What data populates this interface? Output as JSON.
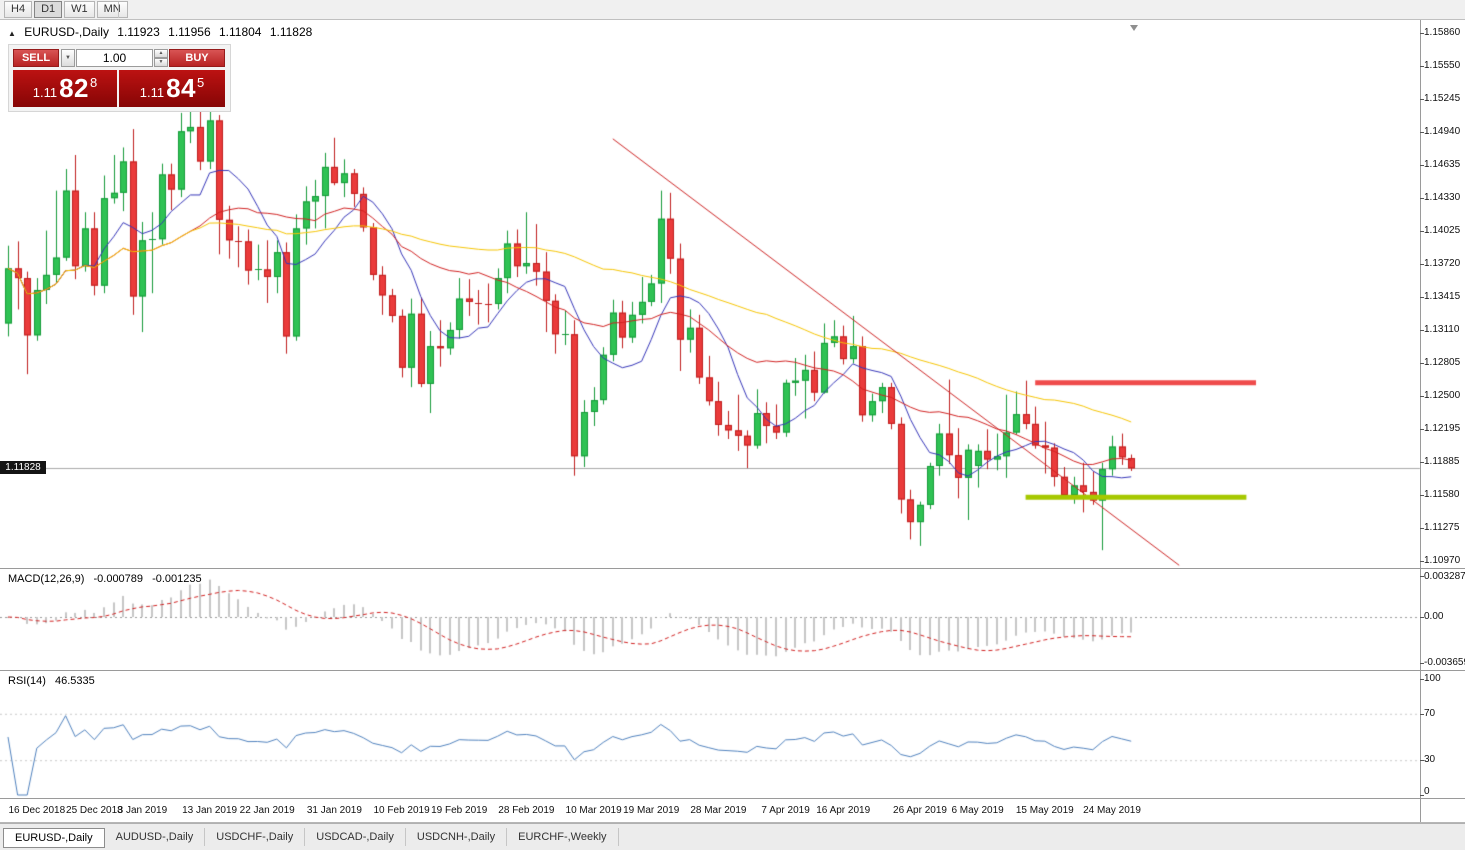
{
  "toolbar": {
    "timeframes": [
      {
        "label": "H4",
        "active": false
      },
      {
        "label": "D1",
        "active": true
      },
      {
        "label": "W1",
        "active": false
      },
      {
        "label": "MN",
        "active": false
      }
    ]
  },
  "icons": {
    "collapse": "▲",
    "dropdown_arrow": "▼",
    "spin_up": "▲",
    "spin_down": "▼"
  },
  "chart_header": {
    "symbol": "EURUSD-,Daily",
    "open": "1.11923",
    "high": "1.11956",
    "low": "1.11804",
    "close": "1.11828"
  },
  "trade_panel": {
    "sell_label": "SELL",
    "buy_label": "BUY",
    "volume": "1.00",
    "bid": {
      "prefix": "1.11",
      "big": "82",
      "sup": "8"
    },
    "ask": {
      "prefix": "1.11",
      "big": "84",
      "sup": "5"
    }
  },
  "price_scale": {
    "bid_label": "1.11828",
    "main": [
      "1.15860",
      "1.15550",
      "1.15245",
      "1.14940",
      "1.14635",
      "1.14330",
      "1.14025",
      "1.13720",
      "1.13415",
      "1.13110",
      "1.12805",
      "1.12500",
      "1.12195",
      "1.11885",
      "1.11580",
      "1.11275",
      "1.10970"
    ]
  },
  "macd_panel": {
    "label": "MACD(12,26,9)",
    "value1": "-0.000789",
    "value2": "-0.001235",
    "scale": [
      "0.003287",
      "0.00",
      "-0.003659"
    ]
  },
  "rsi_panel": {
    "label": "RSI(14)",
    "value": "46.5335",
    "scale": [
      "100",
      "70",
      "30",
      "0"
    ]
  },
  "date_axis": {
    "labels": [
      {
        "text": "16 Dec 2018",
        "index": 3
      },
      {
        "text": "25 Dec 2018",
        "index": 9
      },
      {
        "text": "3 Jan 2019",
        "index": 14
      },
      {
        "text": "13 Jan 2019",
        "index": 21
      },
      {
        "text": "22 Jan 2019",
        "index": 27
      },
      {
        "text": "31 Jan 2019",
        "index": 34
      },
      {
        "text": "10 Feb 2019",
        "index": 41
      },
      {
        "text": "19 Feb 2019",
        "index": 47
      },
      {
        "text": "28 Feb 2019",
        "index": 54
      },
      {
        "text": "10 Mar 2019",
        "index": 61
      },
      {
        "text": "19 Mar 2019",
        "index": 67
      },
      {
        "text": "28 Mar 2019",
        "index": 74
      },
      {
        "text": "7 Apr 2019",
        "index": 81
      },
      {
        "text": "16 Apr 2019",
        "index": 87
      },
      {
        "text": "26 Apr 2019",
        "index": 95
      },
      {
        "text": "6 May 2019",
        "index": 101
      },
      {
        "text": "15 May 2019",
        "index": 108
      },
      {
        "text": "24 May 2019",
        "index": 115
      }
    ]
  },
  "tabs": [
    {
      "label": "EURUSD-,Daily",
      "active": true
    },
    {
      "label": "AUDUSD-,Daily",
      "active": false
    },
    {
      "label": "USDCHF-,Daily",
      "active": false
    },
    {
      "label": "USDCAD-,Daily",
      "active": false
    },
    {
      "label": "USDCNH-,Daily",
      "active": false
    },
    {
      "label": "EURCHF-,Weekly",
      "active": false
    }
  ],
  "colors": {
    "candle_up": "#2fc254",
    "candle_up_border": "#149a38",
    "candle_down": "#ea3b3b",
    "candle_down_border": "#bf1d1d",
    "trendline": "#cc2222",
    "resistance": "#ef4b4b",
    "support": "#a6c800",
    "bid_line": "#a8a8a8",
    "macd_hist": "#c6c6c6",
    "macd_signal": "#d02020",
    "macd_zero": "#999999",
    "rsi_line": "#4f81bd",
    "rsi_levels": "#c8c8c8"
  },
  "chart_data": {
    "type": "candlestick",
    "symbol": "EURUSD",
    "timeframe": "Daily",
    "price_range_visible": [
      1.1091,
      1.1596
    ],
    "grid": false,
    "moving_averages": [
      {
        "period": 8,
        "color": "#3434b8"
      },
      {
        "period": 20,
        "color": "#d02020"
      },
      {
        "period": 50,
        "color": "#f5c400"
      }
    ],
    "indicators": {
      "macd": {
        "fast": 12,
        "slow": 26,
        "signal": 9,
        "current": -0.000789,
        "current_signal": -0.001235,
        "scale_max": 0.003287,
        "scale_min": -0.003659
      },
      "rsi": {
        "period": 14,
        "current": 46.5335,
        "levels": [
          70,
          30
        ]
      }
    },
    "objects": {
      "trendline": {
        "from_index": 63,
        "from_price": 1.1488,
        "to_index": 122,
        "to_price": 1.1093
      },
      "resistance_line": {
        "from_index": 107,
        "to_index": 130,
        "price": 1.1262
      },
      "support_line": {
        "from_index": 106,
        "to_index": 129,
        "price": 1.1156
      }
    },
    "candles": [
      [
        "2018.12.12",
        1.1317,
        1.1389,
        1.1305,
        1.1368
      ],
      [
        "2018.12.13",
        1.1368,
        1.1393,
        1.133,
        1.1359
      ],
      [
        "2018.12.14",
        1.1359,
        1.1365,
        1.127,
        1.1306
      ],
      [
        "2018.12.17",
        1.1306,
        1.1359,
        1.1301,
        1.1348
      ],
      [
        "2018.12.18",
        1.1348,
        1.1403,
        1.1335,
        1.1362
      ],
      [
        "2018.12.19",
        1.1362,
        1.144,
        1.1355,
        1.1378
      ],
      [
        "2018.12.20",
        1.1378,
        1.146,
        1.1375,
        1.144
      ],
      [
        "2018.12.21",
        1.144,
        1.1473,
        1.1358,
        1.137
      ],
      [
        "2018.12.24",
        1.137,
        1.142,
        1.1365,
        1.1405
      ],
      [
        "2018.12.26",
        1.1405,
        1.142,
        1.1343,
        1.1352
      ],
      [
        "2018.12.27",
        1.1352,
        1.1454,
        1.1345,
        1.1433
      ],
      [
        "2018.12.28",
        1.1433,
        1.1473,
        1.1428,
        1.1438
      ],
      [
        "2018.12.31",
        1.1438,
        1.148,
        1.1421,
        1.1467
      ],
      [
        "2019.01.02",
        1.1467,
        1.1497,
        1.1325,
        1.1342
      ],
      [
        "2019.01.03",
        1.1342,
        1.1411,
        1.1309,
        1.1394
      ],
      [
        "2019.01.04",
        1.1394,
        1.142,
        1.1345,
        1.1395
      ],
      [
        "2019.01.07",
        1.1395,
        1.1465,
        1.139,
        1.1455
      ],
      [
        "2019.01.08",
        1.1455,
        1.1465,
        1.1422,
        1.1441
      ],
      [
        "2019.01.09",
        1.1441,
        1.1512,
        1.1434,
        1.1495
      ],
      [
        "2019.01.10",
        1.1495,
        1.1525,
        1.1484,
        1.1499
      ],
      [
        "2019.01.11",
        1.1499,
        1.1522,
        1.1459,
        1.1467
      ],
      [
        "2019.01.14",
        1.1467,
        1.152,
        1.146,
        1.1505
      ],
      [
        "2019.01.15",
        1.1505,
        1.151,
        1.1381,
        1.1413
      ],
      [
        "2019.01.16",
        1.1413,
        1.1426,
        1.1377,
        1.1394
      ],
      [
        "2019.01.17",
        1.1394,
        1.1407,
        1.1369,
        1.1393
      ],
      [
        "2019.01.18",
        1.1393,
        1.1404,
        1.1353,
        1.1366
      ],
      [
        "2019.01.21",
        1.1366,
        1.139,
        1.1357,
        1.1367
      ],
      [
        "2019.01.22",
        1.1367,
        1.1394,
        1.1336,
        1.136
      ],
      [
        "2019.01.23",
        1.136,
        1.1394,
        1.1345,
        1.1383
      ],
      [
        "2019.01.24",
        1.1383,
        1.1392,
        1.1289,
        1.1305
      ],
      [
        "2019.01.25",
        1.1305,
        1.1418,
        1.1301,
        1.1405
      ],
      [
        "2019.01.28",
        1.1405,
        1.1444,
        1.139,
        1.143
      ],
      [
        "2019.01.29",
        1.143,
        1.145,
        1.1405,
        1.1435
      ],
      [
        "2019.01.30",
        1.1435,
        1.1475,
        1.1405,
        1.1462
      ],
      [
        "2019.01.31",
        1.1462,
        1.1489,
        1.1445,
        1.1447
      ],
      [
        "2019.02.01",
        1.1447,
        1.1469,
        1.1434,
        1.1456
      ],
      [
        "2019.02.04",
        1.1456,
        1.146,
        1.1425,
        1.1437
      ],
      [
        "2019.02.05",
        1.1437,
        1.1443,
        1.1402,
        1.1406
      ],
      [
        "2019.02.06",
        1.1406,
        1.141,
        1.1357,
        1.1362
      ],
      [
        "2019.02.07",
        1.1362,
        1.137,
        1.1325,
        1.1343
      ],
      [
        "2019.02.08",
        1.1343,
        1.1349,
        1.1318,
        1.1324
      ],
      [
        "2019.02.11",
        1.1324,
        1.133,
        1.1267,
        1.1276
      ],
      [
        "2019.02.12",
        1.1276,
        1.134,
        1.1258,
        1.1326
      ],
      [
        "2019.02.13",
        1.1326,
        1.1341,
        1.1258,
        1.1261
      ],
      [
        "2019.02.14",
        1.1261,
        1.131,
        1.1234,
        1.1296
      ],
      [
        "2019.02.15",
        1.1296,
        1.132,
        1.1277,
        1.1294
      ],
      [
        "2019.02.18",
        1.1294,
        1.1318,
        1.1288,
        1.1311
      ],
      [
        "2019.02.19",
        1.1311,
        1.1359,
        1.1303,
        1.134
      ],
      [
        "2019.02.20",
        1.134,
        1.1358,
        1.1324,
        1.1337
      ],
      [
        "2019.02.21",
        1.1337,
        1.1348,
        1.1316,
        1.1336
      ],
      [
        "2019.02.22",
        1.1336,
        1.1354,
        1.1318,
        1.1335
      ],
      [
        "2019.02.25",
        1.1335,
        1.1368,
        1.133,
        1.1359
      ],
      [
        "2019.02.26",
        1.1359,
        1.1403,
        1.1345,
        1.1391
      ],
      [
        "2019.02.27",
        1.1391,
        1.1404,
        1.136,
        1.137
      ],
      [
        "2019.02.28",
        1.137,
        1.142,
        1.1363,
        1.1373
      ],
      [
        "2019.03.01",
        1.1373,
        1.1409,
        1.1352,
        1.1365
      ],
      [
        "2019.03.04",
        1.1365,
        1.1383,
        1.1309,
        1.1338
      ],
      [
        "2019.03.05",
        1.1338,
        1.1344,
        1.1289,
        1.1307
      ],
      [
        "2019.03.06",
        1.1307,
        1.1329,
        1.1297,
        1.1307
      ],
      [
        "2019.03.07",
        1.1307,
        1.132,
        1.1176,
        1.1194
      ],
      [
        "2019.03.08",
        1.1194,
        1.1246,
        1.1184,
        1.1235
      ],
      [
        "2019.03.11",
        1.1235,
        1.1258,
        1.1222,
        1.1246
      ],
      [
        "2019.03.12",
        1.1246,
        1.1295,
        1.1242,
        1.1288
      ],
      [
        "2019.03.13",
        1.1288,
        1.1339,
        1.1282,
        1.1327
      ],
      [
        "2019.03.14",
        1.1327,
        1.1338,
        1.1294,
        1.1304
      ],
      [
        "2019.03.15",
        1.1304,
        1.1337,
        1.1299,
        1.1325
      ],
      [
        "2019.03.18",
        1.1325,
        1.136,
        1.1317,
        1.1337
      ],
      [
        "2019.03.19",
        1.1337,
        1.1362,
        1.1333,
        1.1354
      ],
      [
        "2019.03.20",
        1.1354,
        1.144,
        1.1336,
        1.1414
      ],
      [
        "2019.03.21",
        1.1414,
        1.1438,
        1.1363,
        1.1377
      ],
      [
        "2019.03.22",
        1.1377,
        1.1391,
        1.1273,
        1.1302
      ],
      [
        "2019.03.25",
        1.1302,
        1.133,
        1.129,
        1.1313
      ],
      [
        "2019.03.26",
        1.1313,
        1.1325,
        1.1261,
        1.1267
      ],
      [
        "2019.03.27",
        1.1267,
        1.1287,
        1.1241,
        1.1245
      ],
      [
        "2019.03.28",
        1.1245,
        1.1263,
        1.1213,
        1.1223
      ],
      [
        "2019.03.29",
        1.1223,
        1.1236,
        1.121,
        1.1218
      ],
      [
        "2019.04.01",
        1.1218,
        1.1251,
        1.1199,
        1.1213
      ],
      [
        "2019.04.02",
        1.1213,
        1.1218,
        1.1183,
        1.1204
      ],
      [
        "2019.04.03",
        1.1204,
        1.1256,
        1.1201,
        1.1234
      ],
      [
        "2019.04.04",
        1.1234,
        1.1244,
        1.1206,
        1.1222
      ],
      [
        "2019.04.05",
        1.1222,
        1.1242,
        1.121,
        1.1216
      ],
      [
        "2019.04.08",
        1.1216,
        1.1265,
        1.1212,
        1.1262
      ],
      [
        "2019.04.09",
        1.1262,
        1.1285,
        1.125,
        1.1264
      ],
      [
        "2019.04.10",
        1.1264,
        1.1288,
        1.1229,
        1.1274
      ],
      [
        "2019.04.11",
        1.1274,
        1.1291,
        1.1245,
        1.1253
      ],
      [
        "2019.04.12",
        1.1253,
        1.1317,
        1.1252,
        1.1299
      ],
      [
        "2019.04.15",
        1.1299,
        1.132,
        1.1295,
        1.1305
      ],
      [
        "2019.04.16",
        1.1305,
        1.1315,
        1.1279,
        1.1284
      ],
      [
        "2019.04.17",
        1.1284,
        1.1324,
        1.128,
        1.1296
      ],
      [
        "2019.04.18",
        1.1296,
        1.1305,
        1.1226,
        1.1232
      ],
      [
        "2019.04.19",
        1.1232,
        1.1252,
        1.1226,
        1.1245
      ],
      [
        "2019.04.22",
        1.1245,
        1.1262,
        1.1234,
        1.1258
      ],
      [
        "2019.04.23",
        1.1258,
        1.1262,
        1.1219,
        1.1224
      ],
      [
        "2019.04.24",
        1.1224,
        1.123,
        1.1141,
        1.1154
      ],
      [
        "2019.04.25",
        1.1154,
        1.1163,
        1.1117,
        1.1133
      ],
      [
        "2019.04.26",
        1.1133,
        1.1152,
        1.1111,
        1.1149
      ],
      [
        "2019.04.29",
        1.1149,
        1.1188,
        1.1145,
        1.1185
      ],
      [
        "2019.04.30",
        1.1185,
        1.1224,
        1.1176,
        1.1215
      ],
      [
        "2019.05.01",
        1.1215,
        1.1265,
        1.1187,
        1.1195
      ],
      [
        "2019.05.02",
        1.1195,
        1.122,
        1.1155,
        1.1174
      ],
      [
        "2019.05.03",
        1.1174,
        1.1205,
        1.1135,
        1.12
      ],
      [
        "2019.05.06",
        1.1185,
        1.1205,
        1.1165,
        1.1199
      ],
      [
        "2019.05.07",
        1.1199,
        1.1219,
        1.1182,
        1.1191
      ],
      [
        "2019.05.08",
        1.1191,
        1.1215,
        1.1181,
        1.1194
      ],
      [
        "2019.05.09",
        1.1194,
        1.1251,
        1.1174,
        1.1216
      ],
      [
        "2019.05.10",
        1.1216,
        1.1254,
        1.1214,
        1.1233
      ],
      [
        "2019.05.13",
        1.1233,
        1.1264,
        1.1219,
        1.1224
      ],
      [
        "2019.05.14",
        1.1224,
        1.124,
        1.1201,
        1.1204
      ],
      [
        "2019.05.15",
        1.1204,
        1.1226,
        1.1178,
        1.1202
      ],
      [
        "2019.05.16",
        1.1202,
        1.1206,
        1.1166,
        1.1175
      ],
      [
        "2019.05.17",
        1.1175,
        1.1184,
        1.1155,
        1.1158
      ],
      [
        "2019.05.20",
        1.1158,
        1.1175,
        1.115,
        1.1167
      ],
      [
        "2019.05.21",
        1.1167,
        1.1188,
        1.1142,
        1.1161
      ],
      [
        "2019.05.22",
        1.1161,
        1.118,
        1.1149,
        1.1153
      ],
      [
        "2019.05.23",
        1.1153,
        1.1188,
        1.1107,
        1.1182
      ],
      [
        "2019.05.24",
        1.1182,
        1.1213,
        1.1176,
        1.1203
      ],
      [
        "2019.05.27",
        1.1203,
        1.1215,
        1.1186,
        1.1193
      ],
      [
        "2019.05.28",
        1.11923,
        1.11956,
        1.11804,
        1.11828
      ]
    ]
  }
}
